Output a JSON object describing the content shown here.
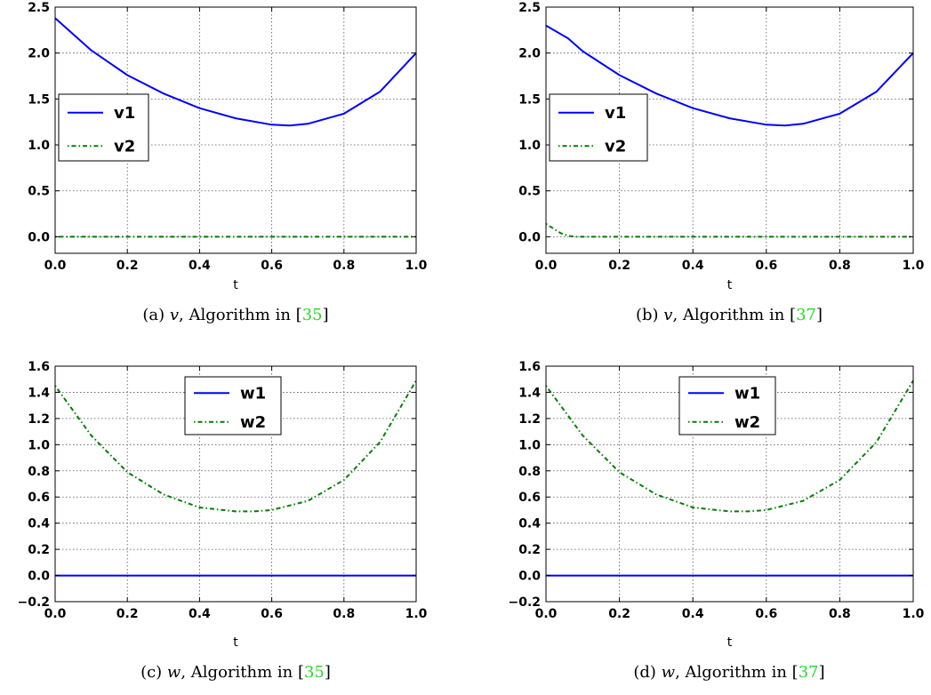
{
  "colors": {
    "series1": "#0000ff",
    "series2": "#007f00",
    "grid": "#555555",
    "ref": "#22dd22"
  },
  "chart_data": [
    {
      "type": "line",
      "xlabel": "t",
      "ylabel": "",
      "xlim": [
        0.0,
        1.0
      ],
      "ylim": [
        -0.18,
        2.5
      ],
      "xticks": [
        "0.0",
        "0.2",
        "0.4",
        "0.6",
        "0.8",
        "1.0"
      ],
      "yticks": [
        "0.0",
        "0.5",
        "1.0",
        "1.5",
        "2.0",
        "2.5"
      ],
      "grid": true,
      "legend_position": "center-left",
      "caption": {
        "prefix": "(a) ",
        "var": "v",
        "mid": ", Algorithm in [",
        "ref": "35",
        "suffix": "]"
      },
      "series": [
        {
          "name": "v1",
          "style": "solid",
          "x": [
            0.0,
            0.1,
            0.2,
            0.3,
            0.4,
            0.5,
            0.6,
            0.65,
            0.7,
            0.8,
            0.9,
            1.0
          ],
          "y": [
            2.38,
            2.03,
            1.76,
            1.56,
            1.4,
            1.29,
            1.22,
            1.21,
            1.23,
            1.34,
            1.58,
            2.0
          ]
        },
        {
          "name": "v2",
          "style": "dashdot",
          "x": [
            0.0,
            1.0
          ],
          "y": [
            0.0,
            0.0
          ]
        }
      ]
    },
    {
      "type": "line",
      "xlabel": "t",
      "ylabel": "",
      "xlim": [
        0.0,
        1.0
      ],
      "ylim": [
        -0.18,
        2.5
      ],
      "xticks": [
        "0.0",
        "0.2",
        "0.4",
        "0.6",
        "0.8",
        "1.0"
      ],
      "yticks": [
        "0.0",
        "0.5",
        "1.0",
        "1.5",
        "2.0",
        "2.5"
      ],
      "grid": true,
      "legend_position": "center-left",
      "caption": {
        "prefix": "(b) ",
        "var": "v",
        "mid": ", Algorithm in [",
        "ref": "37",
        "suffix": "]"
      },
      "series": [
        {
          "name": "v1",
          "style": "solid",
          "x": [
            0.0,
            0.06,
            0.1,
            0.2,
            0.3,
            0.4,
            0.5,
            0.6,
            0.65,
            0.7,
            0.8,
            0.9,
            1.0
          ],
          "y": [
            2.3,
            2.16,
            2.02,
            1.76,
            1.56,
            1.4,
            1.29,
            1.22,
            1.21,
            1.23,
            1.34,
            1.58,
            2.0
          ]
        },
        {
          "name": "v2",
          "style": "dashdot",
          "x": [
            0.0,
            0.02,
            0.04,
            0.06,
            0.08,
            1.0
          ],
          "y": [
            0.14,
            0.09,
            0.04,
            0.01,
            0.0,
            0.0
          ]
        }
      ]
    },
    {
      "type": "line",
      "xlabel": "t",
      "ylabel": "",
      "xlim": [
        0.0,
        1.0
      ],
      "ylim": [
        -0.2,
        1.6
      ],
      "xticks": [
        "0.0",
        "0.2",
        "0.4",
        "0.6",
        "0.8",
        "1.0"
      ],
      "yticks": [
        "−0.2",
        "0.0",
        "0.2",
        "0.4",
        "0.6",
        "0.8",
        "1.0",
        "1.2",
        "1.4",
        "1.6"
      ],
      "ytick_values": [
        -0.2,
        0.0,
        0.2,
        0.4,
        0.6,
        0.8,
        1.0,
        1.2,
        1.4,
        1.6
      ],
      "grid": true,
      "legend_position": "upper-center",
      "caption": {
        "prefix": "(c) ",
        "var": "w",
        "mid": ", Algorithm in [",
        "ref": "35",
        "suffix": "]"
      },
      "series": [
        {
          "name": "w1",
          "style": "solid",
          "x": [
            0.0,
            1.0
          ],
          "y": [
            0.0,
            0.0
          ]
        },
        {
          "name": "w2",
          "style": "dashdot",
          "x": [
            0.0,
            0.1,
            0.2,
            0.3,
            0.4,
            0.5,
            0.55,
            0.6,
            0.7,
            0.8,
            0.9,
            1.0
          ],
          "y": [
            1.45,
            1.07,
            0.79,
            0.62,
            0.52,
            0.49,
            0.49,
            0.5,
            0.57,
            0.73,
            1.02,
            1.49
          ]
        }
      ]
    },
    {
      "type": "line",
      "xlabel": "t",
      "ylabel": "",
      "xlim": [
        0.0,
        1.0
      ],
      "ylim": [
        -0.2,
        1.6
      ],
      "xticks": [
        "0.0",
        "0.2",
        "0.4",
        "0.6",
        "0.8",
        "1.0"
      ],
      "yticks": [
        "−0.2",
        "0.0",
        "0.2",
        "0.4",
        "0.6",
        "0.8",
        "1.0",
        "1.2",
        "1.4",
        "1.6"
      ],
      "ytick_values": [
        -0.2,
        0.0,
        0.2,
        0.4,
        0.6,
        0.8,
        1.0,
        1.2,
        1.4,
        1.6
      ],
      "grid": true,
      "legend_position": "upper-center",
      "caption": {
        "prefix": "(d) ",
        "var": "w",
        "mid": ", Algorithm in [",
        "ref": "37",
        "suffix": "]"
      },
      "series": [
        {
          "name": "w1",
          "style": "solid",
          "x": [
            0.0,
            1.0
          ],
          "y": [
            0.0,
            0.0
          ]
        },
        {
          "name": "w2",
          "style": "dashdot",
          "x": [
            0.0,
            0.1,
            0.2,
            0.3,
            0.4,
            0.5,
            0.55,
            0.6,
            0.7,
            0.8,
            0.9,
            1.0
          ],
          "y": [
            1.45,
            1.07,
            0.79,
            0.62,
            0.52,
            0.49,
            0.49,
            0.5,
            0.57,
            0.73,
            1.02,
            1.49
          ]
        }
      ]
    }
  ]
}
